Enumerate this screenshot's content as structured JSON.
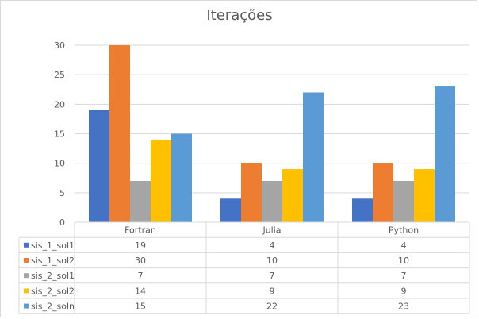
{
  "chart_data": {
    "type": "bar",
    "title": "Iterações",
    "categories": [
      "Fortran",
      "Julia",
      "Python"
    ],
    "ylim": [
      0,
      30
    ],
    "yticks": [
      0,
      5,
      10,
      15,
      20,
      25,
      30
    ],
    "grid": true,
    "legend": "data-table",
    "series": [
      {
        "name": "sis_1_sol1",
        "color": "#4472c4",
        "values": [
          19,
          4,
          4
        ]
      },
      {
        "name": "sis_1_sol2",
        "color": "#ed7d31",
        "values": [
          30,
          10,
          10
        ]
      },
      {
        "name": "sis_2_sol1",
        "color": "#a5a5a5",
        "values": [
          7,
          7,
          7
        ]
      },
      {
        "name": "sis_2_sol2",
        "color": "#ffc000",
        "values": [
          14,
          9,
          9
        ]
      },
      {
        "name": "sis_2_soln",
        "color": "#5b9bd5",
        "values": [
          15,
          22,
          23
        ]
      }
    ]
  }
}
